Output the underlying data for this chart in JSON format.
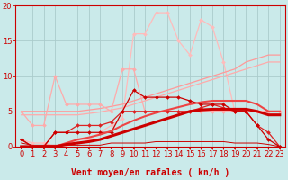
{
  "background_color": "#caeaea",
  "grid_color": "#aacccc",
  "xlabel": "Vent moyen/en rafales ( kn/h )",
  "xlim": [
    -0.5,
    23.5
  ],
  "ylim": [
    0,
    20
  ],
  "yticks": [
    0,
    5,
    10,
    15,
    20
  ],
  "xticks": [
    0,
    1,
    2,
    3,
    4,
    5,
    6,
    7,
    8,
    9,
    10,
    11,
    12,
    13,
    14,
    15,
    16,
    17,
    18,
    19,
    20,
    21,
    22,
    23
  ],
  "series": [
    {
      "x": [
        0,
        1,
        2,
        3,
        4,
        5,
        6,
        7,
        8,
        9,
        10,
        11,
        12,
        13,
        14,
        15,
        16,
        17,
        18,
        19,
        20,
        21,
        22,
        23
      ],
      "y": [
        1,
        0.5,
        0.5,
        0,
        0,
        1,
        1,
        2,
        3,
        4,
        16,
        16,
        19,
        19,
        15,
        13,
        18,
        17,
        12,
        5,
        5,
        5,
        5,
        5
      ],
      "color": "#ffbbbb",
      "linewidth": 0.9,
      "marker": "D",
      "markersize": 2.0,
      "zorder": 2
    },
    {
      "x": [
        0,
        1,
        2,
        3,
        4,
        5,
        6,
        7,
        8,
        9,
        10,
        11,
        12,
        13,
        14,
        15,
        16,
        17,
        18,
        19,
        20,
        21,
        22,
        23
      ],
      "y": [
        5,
        3,
        3,
        10,
        6,
        6,
        6,
        6,
        5,
        11,
        11,
        5,
        5,
        5,
        5,
        5,
        5,
        5,
        5,
        5,
        5,
        5,
        5,
        5
      ],
      "color": "#ffaaaa",
      "linewidth": 0.9,
      "marker": "D",
      "markersize": 2.0,
      "zorder": 3
    },
    {
      "x": [
        0,
        1,
        2,
        3,
        4,
        5,
        6,
        7,
        8,
        9,
        10,
        11,
        12,
        13,
        14,
        15,
        16,
        17,
        18,
        19,
        20,
        21,
        22,
        23
      ],
      "y": [
        5,
        5,
        5,
        5,
        5,
        5,
        5.2,
        5.4,
        5.7,
        6,
        6.5,
        7,
        7.5,
        8,
        8.5,
        9,
        9.5,
        10,
        10.5,
        11,
        12,
        12.5,
        13,
        13
      ],
      "color": "#ff9999",
      "linewidth": 0.9,
      "marker": null,
      "markersize": 0,
      "zorder": 2
    },
    {
      "x": [
        0,
        1,
        2,
        3,
        4,
        5,
        6,
        7,
        8,
        9,
        10,
        11,
        12,
        13,
        14,
        15,
        16,
        17,
        18,
        19,
        20,
        21,
        22,
        23
      ],
      "y": [
        4.5,
        4.5,
        4.5,
        4.5,
        4.5,
        4.5,
        4.7,
        4.9,
        5.2,
        5.5,
        6,
        6.5,
        7,
        7.5,
        8,
        8.5,
        9,
        9.5,
        10,
        10.5,
        11,
        11.5,
        12,
        12
      ],
      "color": "#ffaaaa",
      "linewidth": 0.9,
      "marker": null,
      "markersize": 0,
      "zorder": 2
    },
    {
      "x": [
        0,
        1,
        2,
        3,
        4,
        5,
        6,
        7,
        8,
        9,
        10,
        11,
        12,
        13,
        14,
        15,
        16,
        17,
        18,
        19,
        20,
        21,
        22,
        23
      ],
      "y": [
        1,
        0,
        0,
        2,
        2,
        2,
        2,
        2,
        2,
        5,
        8,
        7,
        7,
        7,
        7,
        6.5,
        6,
        6,
        6,
        5,
        5,
        3,
        1,
        0
      ],
      "color": "#cc0000",
      "linewidth": 0.9,
      "marker": "D",
      "markersize": 2.0,
      "zorder": 6
    },
    {
      "x": [
        0,
        1,
        2,
        3,
        4,
        5,
        6,
        7,
        8,
        9,
        10,
        11,
        12,
        13,
        14,
        15,
        16,
        17,
        18,
        19,
        20,
        21,
        22,
        23
      ],
      "y": [
        1,
        0,
        0,
        2,
        2,
        3,
        3,
        3,
        3.5,
        5,
        5,
        5,
        5,
        5,
        5,
        5,
        5.5,
        6,
        5.5,
        5,
        5,
        3,
        2,
        0
      ],
      "color": "#dd2222",
      "linewidth": 0.9,
      "marker": "D",
      "markersize": 2.0,
      "zorder": 5
    },
    {
      "x": [
        0,
        1,
        2,
        3,
        4,
        5,
        6,
        7,
        8,
        9,
        10,
        11,
        12,
        13,
        14,
        15,
        16,
        17,
        18,
        19,
        20,
        21,
        22,
        23
      ],
      "y": [
        0,
        0,
        0,
        0,
        0.3,
        0.5,
        0.7,
        1,
        1.5,
        2,
        2.5,
        3,
        3.5,
        4,
        4.5,
        5,
        5.2,
        5.3,
        5.3,
        5.3,
        5.3,
        5,
        4.5,
        4.5
      ],
      "color": "#cc0000",
      "linewidth": 2.2,
      "marker": null,
      "markersize": 0,
      "zorder": 7
    },
    {
      "x": [
        0,
        1,
        2,
        3,
        4,
        5,
        6,
        7,
        8,
        9,
        10,
        11,
        12,
        13,
        14,
        15,
        16,
        17,
        18,
        19,
        20,
        21,
        22,
        23
      ],
      "y": [
        0,
        0,
        0,
        0,
        0.5,
        1,
        1.3,
        1.7,
        2.2,
        3,
        3.7,
        4.3,
        4.8,
        5.2,
        5.6,
        6,
        6.3,
        6.5,
        6.5,
        6.5,
        6.5,
        6,
        5,
        5
      ],
      "color": "#ee4444",
      "linewidth": 1.5,
      "marker": null,
      "markersize": 0,
      "zorder": 6
    },
    {
      "x": [
        0,
        1,
        2,
        3,
        4,
        5,
        6,
        7,
        8,
        9,
        10,
        11,
        12,
        13,
        14,
        15,
        16,
        17,
        18,
        19,
        20,
        21,
        22,
        23
      ],
      "y": [
        0.5,
        0.2,
        0.2,
        0.2,
        0.2,
        0.2,
        0.2,
        0.2,
        0.5,
        0.5,
        0.5,
        0.5,
        0.7,
        0.7,
        0.7,
        0.7,
        0.7,
        0.7,
        0.7,
        0.5,
        0.5,
        0.5,
        0.3,
        0
      ],
      "color": "#cc0000",
      "linewidth": 0.7,
      "marker": null,
      "markersize": 0,
      "zorder": 4
    }
  ],
  "arrow_symbol": "↓",
  "axis_fontsize": 7,
  "tick_fontsize": 6
}
